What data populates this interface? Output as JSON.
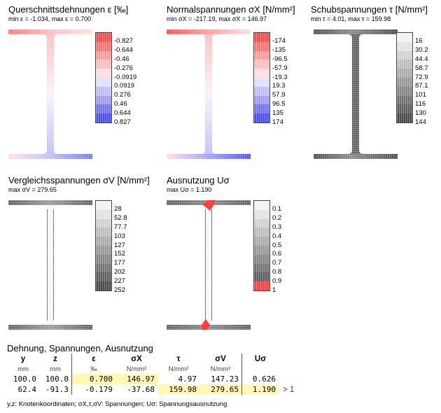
{
  "panels": [
    {
      "id": "strain",
      "title": "Querschnittsdehnungen ε [‰]",
      "subtitle": "min ε = -1.034,  max ε = 0.700",
      "scale": "diverging",
      "legend": [
        "-0.827",
        "-0.644",
        "-0.46",
        "-0.276",
        "-0.0919",
        "0.0919",
        "0.276",
        "0.46",
        "0.644",
        "0.827"
      ],
      "colors": [
        "#ff4a4a",
        "#ff7070",
        "#ff9a9a",
        "#ffbcbc",
        "#ffdede",
        "#dedeff",
        "#bcbcff",
        "#9a9aff",
        "#7070ff",
        "#4a4aff"
      ]
    },
    {
      "id": "sigma_x",
      "title": "Normalspannungen σX [N/mm²]",
      "subtitle": "min σX = -217.19,  max σX = 146.97",
      "scale": "diverging",
      "legend": [
        "-174",
        "-135",
        "-96.5",
        "-57.9",
        "-19.3",
        "19.3",
        "57.9",
        "96.5",
        "135",
        "174"
      ],
      "colors": [
        "#ff4a4a",
        "#ff7070",
        "#ff9a9a",
        "#ffbcbc",
        "#ffdede",
        "#dedeff",
        "#bcbcff",
        "#9a9aff",
        "#7070ff",
        "#4a4aff"
      ]
    },
    {
      "id": "tau",
      "title": "Schubspannungen τ [N/mm²]",
      "subtitle": "min τ = 4.01,  max τ = 159.98",
      "scale": "grey",
      "legend": [
        "16",
        "30.2",
        "44.4",
        "58.7",
        "72.9",
        "87.1",
        "101",
        "116",
        "130",
        "144"
      ],
      "colors": [
        "#f2f2f2",
        "#e2e2e2",
        "#d0d0d0",
        "#bdbdbd",
        "#aaaaaa",
        "#979797",
        "#848484",
        "#707070",
        "#5c5c5c",
        "#484848"
      ]
    },
    {
      "id": "sigma_v",
      "title": "Vergleichsspannungen σV [N/mm²]",
      "subtitle": "max σV = 279.65",
      "scale": "grey",
      "legend": [
        "28",
        "52.8",
        "77.7",
        "103",
        "127",
        "152",
        "177",
        "202",
        "227",
        "252"
      ],
      "colors": [
        "#f2f2f2",
        "#e2e2e2",
        "#d0d0d0",
        "#bdbdbd",
        "#aaaaaa",
        "#979797",
        "#848484",
        "#707070",
        "#5c5c5c",
        "#484848"
      ]
    },
    {
      "id": "usage",
      "title": "Ausnutzung Uσ",
      "subtitle": "max Uσ = 1.190",
      "scale": "grey-red",
      "legend": [
        "0.1",
        "0.2",
        "0.3",
        "0.4",
        "0.5",
        "0.6",
        "0.7",
        "0.8",
        "0.9",
        "1"
      ],
      "colors": [
        "#f2f2f2",
        "#e2e2e2",
        "#d0d0d0",
        "#bdbdbd",
        "#aaaaaa",
        "#979797",
        "#848484",
        "#707070",
        "#5c5c5c",
        "#ff4040"
      ]
    }
  ],
  "table": {
    "title": "Dehnung, Spannungen, Ausnutzung",
    "headers": [
      "y",
      "z",
      "ε",
      "σX",
      "τ",
      "σV",
      "Uσ"
    ],
    "units": [
      "mm",
      "mm",
      "‰",
      "N/mm²",
      "N/mm²",
      "N/mm²",
      ""
    ],
    "rows": [
      [
        "100.0",
        "100.0",
        "0.700",
        "146.97",
        "4.97",
        "147.23",
        "0.626",
        ""
      ],
      [
        "62.4",
        "-91.3",
        "-0.179",
        "-37.68",
        "159.98",
        "279.65",
        "1.190",
        "> 1"
      ]
    ],
    "footnote": "y,z: Knotenkoordinaten;  σX,τ,σV: Spannungen;  Uσ: Spannungsausnutzung"
  },
  "colors": {
    "highlight": "#fff8b4",
    "exceed": "#d00000",
    "mesh_line": "#ffffff"
  }
}
